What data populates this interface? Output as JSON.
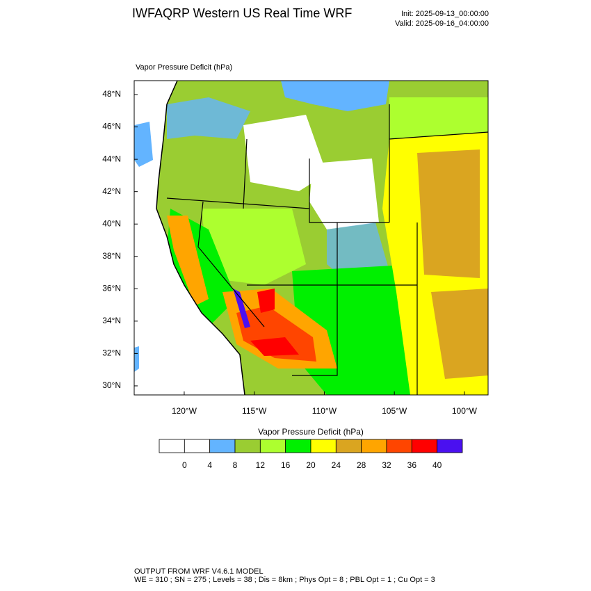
{
  "header": {
    "title": "IWFAQRP Western US Real Time WRF",
    "init": "Init: 2025-09-13_00:00:00",
    "valid": "Valid: 2025-09-16_04:00:00"
  },
  "map": {
    "title": "Vapor Pressure Deficit   (hPa)",
    "xlim": [
      -123.57,
      -98.31
    ],
    "ylim": [
      29.44,
      48.86
    ],
    "xticks": [
      {
        "value": -120,
        "label": "120°W"
      },
      {
        "value": -115,
        "label": "115°W"
      },
      {
        "value": -110,
        "label": "110°W"
      },
      {
        "value": -105,
        "label": "105°W"
      },
      {
        "value": -100,
        "label": "100°W"
      }
    ],
    "yticks": [
      {
        "value": 30,
        "label": "30°N"
      },
      {
        "value": 32,
        "label": "32°N"
      },
      {
        "value": 34,
        "label": "34°N"
      },
      {
        "value": 36,
        "label": "36°N"
      },
      {
        "value": 38,
        "label": "38°N"
      },
      {
        "value": 40,
        "label": "40°N"
      },
      {
        "value": 42,
        "label": "42°N"
      },
      {
        "value": 44,
        "label": "44°N"
      },
      {
        "value": 46,
        "label": "46°N"
      },
      {
        "value": 48,
        "label": "48°N"
      }
    ]
  },
  "colorbar": {
    "title": "Vapor Pressure Deficit  (hPa)",
    "levels": [
      0,
      4,
      8,
      12,
      16,
      20,
      24,
      28,
      32,
      36,
      40
    ],
    "colors": [
      "#ffffff",
      "#ffffff",
      "#63b4ff",
      "#9acd32",
      "#adff2f",
      "#00f000",
      "#ffff00",
      "#daa520",
      "#ffa500",
      "#ff4500",
      "#ff0000",
      "#4a10f0"
    ]
  },
  "footer": {
    "line1": "OUTPUT FROM WRF V4.6.1 MODEL",
    "line2": "WE = 310 ; SN = 275 ; Levels = 38 ; Dis = 8km ; Phys Opt = 8 ; PBL Opt = 1 ; Cu Opt = 3"
  }
}
